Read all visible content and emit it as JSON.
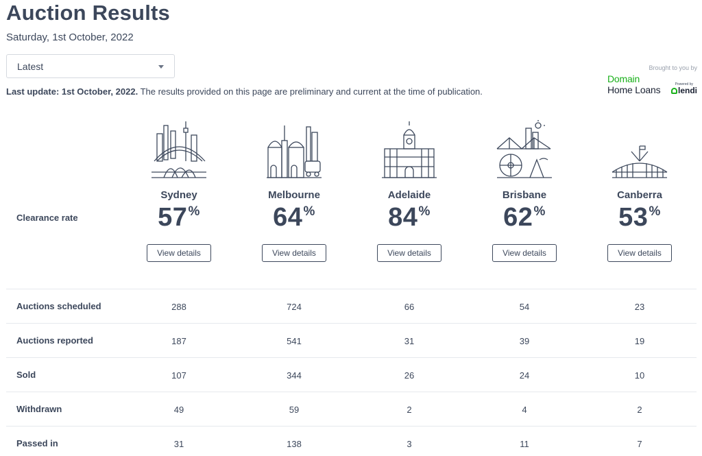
{
  "header": {
    "title": "Auction Results",
    "date": "Saturday, 1st October, 2022"
  },
  "filter": {
    "selected": "Latest"
  },
  "update": {
    "bold": "Last update: 1st October, 2022.",
    "text": " The results provided on this page are preliminary and current at the time of publication."
  },
  "sponsor": {
    "brought": "Brought to you by",
    "line1": "Domain",
    "line2": "Home Loans",
    "powered": "Powered by",
    "lendi": "lendi"
  },
  "clearance_label": "Clearance rate",
  "view_details": "View details",
  "cities": [
    {
      "name": "Sydney",
      "rate": "57",
      "icon": "sydney-skyline-icon"
    },
    {
      "name": "Melbourne",
      "rate": "64",
      "icon": "melbourne-skyline-icon"
    },
    {
      "name": "Adelaide",
      "rate": "84",
      "icon": "adelaide-skyline-icon"
    },
    {
      "name": "Brisbane",
      "rate": "62",
      "icon": "brisbane-skyline-icon"
    },
    {
      "name": "Canberra",
      "rate": "53",
      "icon": "canberra-skyline-icon"
    }
  ],
  "percent": "%",
  "table": {
    "rows": [
      {
        "label": "Auctions scheduled",
        "values": [
          "288",
          "724",
          "66",
          "54",
          "23"
        ]
      },
      {
        "label": "Auctions reported",
        "values": [
          "187",
          "541",
          "31",
          "39",
          "19"
        ]
      },
      {
        "label": "Sold",
        "values": [
          "107",
          "344",
          "26",
          "24",
          "10"
        ]
      },
      {
        "label": "Withdrawn",
        "values": [
          "49",
          "59",
          "2",
          "4",
          "2"
        ]
      },
      {
        "label": "Passed in",
        "values": [
          "31",
          "138",
          "3",
          "11",
          "7"
        ]
      }
    ]
  }
}
